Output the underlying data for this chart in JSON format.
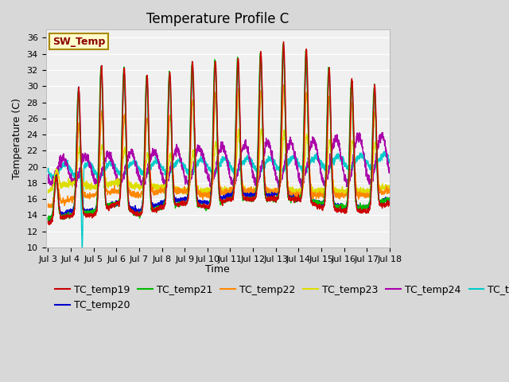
{
  "title": "Temperature Profile C",
  "xlabel": "Time",
  "ylabel": "Temperature (C)",
  "ylim": [
    10,
    37
  ],
  "yticks": [
    10,
    12,
    14,
    16,
    18,
    20,
    22,
    24,
    26,
    28,
    30,
    32,
    34,
    36
  ],
  "xtick_labels": [
    "Jul 3",
    "Jul 4",
    "Jul 5",
    "Jul 6",
    "Jul 7",
    "Jul 8",
    "Jul 9",
    "Jul 10",
    "Jul 11",
    "Jul 12",
    "Jul 13",
    "Jul 14",
    "Jul 15",
    "Jul 16",
    "Jul 17",
    "Jul 18"
  ],
  "series_colors": {
    "TC_temp19": "#cc0000",
    "TC_temp20": "#0000cc",
    "TC_temp21": "#00bb00",
    "TC_temp22": "#ff8800",
    "TC_temp23": "#dddd00",
    "TC_temp24": "#aa00aa",
    "TC_temp25": "#00cccc"
  },
  "legend_label": "SW_Temp",
  "legend_box_color": "#ffffcc",
  "legend_box_edge": "#aa8800",
  "fig_bg_color": "#d8d8d8",
  "plot_bg_color": "#f0f0f0",
  "grid_color": "#ffffff",
  "title_fontsize": 12,
  "axis_fontsize": 9,
  "tick_fontsize": 8,
  "legend_fontsize": 9
}
